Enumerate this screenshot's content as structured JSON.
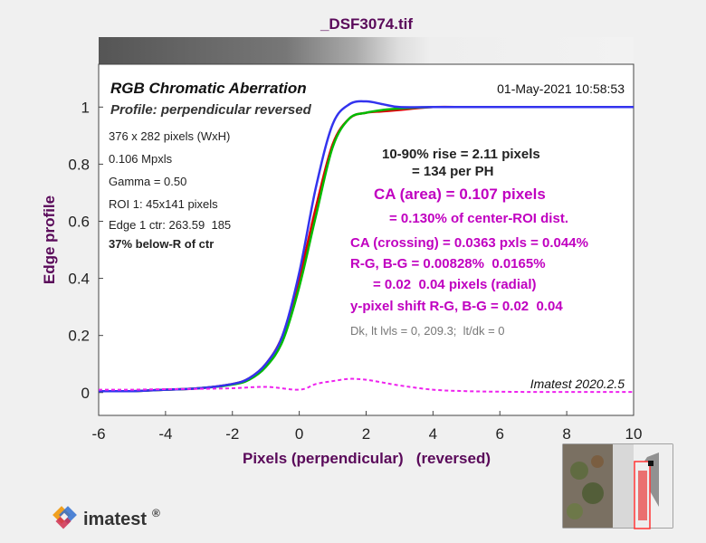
{
  "window_title": "_DSF3074.tif",
  "chart_data": {
    "type": "line",
    "title": "RGB Chromatic Aberration",
    "subtitle": "Profile: perpendicular reversed",
    "timestamp": "01-May-2021 10:58:53",
    "xlabel": "Pixels (perpendicular)   (reversed)",
    "ylabel": "Edge profile",
    "xlim": [
      -6,
      10
    ],
    "ylim": [
      -0.08,
      1.15
    ],
    "x_ticks": [
      -6,
      -4,
      -2,
      0,
      2,
      4,
      6,
      8,
      10
    ],
    "x_tick_labels": [
      "-6",
      "-4",
      "-2",
      "0",
      "2",
      "4",
      "6",
      "8",
      "10"
    ],
    "y_ticks": [
      0,
      0.2,
      0.4,
      0.6,
      0.8,
      1
    ],
    "y_tick_labels": [
      "0",
      "0.2",
      "0.4",
      "0.6",
      "0.8",
      "1"
    ],
    "grid": false,
    "series": [
      {
        "color": "#dd0000",
        "x": [
          -6,
          -5,
          -4,
          -3,
          -2,
          -1.5,
          -1,
          -0.5,
          0,
          0.5,
          1,
          1.5,
          2,
          2.5,
          3,
          4,
          5,
          6,
          7,
          8,
          9,
          10
        ],
        "y": [
          0.005,
          0.005,
          0.01,
          0.015,
          0.03,
          0.05,
          0.1,
          0.2,
          0.4,
          0.65,
          0.87,
          0.96,
          0.98,
          0.985,
          0.99,
          1.0,
          1.0,
          1.0,
          1.0,
          1.0,
          1.0,
          1.0
        ]
      },
      {
        "color": "#00bb00",
        "x": [
          -6,
          -5,
          -4,
          -3,
          -2,
          -1.5,
          -1,
          -0.5,
          0,
          0.5,
          1,
          1.5,
          2,
          2.5,
          3,
          4,
          5,
          6,
          7,
          8,
          9,
          10
        ],
        "y": [
          0.005,
          0.005,
          0.01,
          0.015,
          0.028,
          0.045,
          0.09,
          0.18,
          0.37,
          0.62,
          0.86,
          0.96,
          0.98,
          0.99,
          0.995,
          1.0,
          1.0,
          1.0,
          1.0,
          1.0,
          1.0,
          1.0
        ]
      },
      {
        "color": "#3333ee",
        "x": [
          -6,
          -5,
          -4,
          -3,
          -2,
          -1.5,
          -1,
          -0.5,
          0,
          0.5,
          1,
          1.5,
          2,
          2.5,
          3,
          4,
          5,
          6,
          7,
          8,
          9,
          10
        ],
        "y": [
          0.005,
          0.005,
          0.01,
          0.015,
          0.03,
          0.05,
          0.1,
          0.2,
          0.42,
          0.72,
          0.94,
          1.01,
          1.02,
          1.01,
          1.0,
          1.0,
          1.0,
          1.0,
          1.0,
          1.0,
          1.0,
          1.0
        ]
      },
      {
        "color": "#ee22ee",
        "dashed": true,
        "x": [
          -6,
          -5,
          -4,
          -3,
          -2,
          -1,
          0,
          0.5,
          1,
          1.5,
          2,
          2.5,
          3,
          4,
          5,
          6,
          7,
          8,
          9,
          10
        ],
        "y": [
          0.01,
          0.01,
          0.012,
          0.013,
          0.015,
          0.02,
          0.01,
          0.03,
          0.04,
          0.048,
          0.045,
          0.035,
          0.025,
          0.01,
          0.005,
          0.003,
          0.002,
          0.002,
          0.002,
          0.002
        ]
      }
    ],
    "info_left": [
      "376 x 282 pixels (WxH)",
      "0.106 Mpxls",
      "Gamma = 0.50",
      "ROI 1: 45x141 pixels",
      "Edge 1 ctr: 263.59  185"
    ],
    "info_left_bold": "37% below-R of ctr",
    "rise_line1": "10-90% rise = 2.11 pixels",
    "rise_line2": "= 134 per PH",
    "ca_area": "CA (area) = 0.107 pixels",
    "ca_center": "= 0.130% of center-ROI dist.",
    "ca_crossing": "CA (crossing) = 0.0363 pxls = 0.044%",
    "rg_bg": "R-G, B-G = 0.00828%  0.0165%",
    "radial": "= 0.02  0.04 pixels (radial)",
    "yshift": "y-pixel shift R-G, B-G = 0.02  0.04",
    "dk_levels": "Dk, lt lvls = 0, 209.3;  lt/dk = 0",
    "version": "Imatest 2020.2.5",
    "colors": {
      "purple": "#5a0a5a",
      "magenta": "#c000c0",
      "red": "#dd0000",
      "green": "#00bb00",
      "blue": "#3333ee"
    }
  },
  "logo": {
    "text": "imatest",
    "mark": "®"
  },
  "thumbnail": {
    "label": "ROI thumbnail"
  }
}
